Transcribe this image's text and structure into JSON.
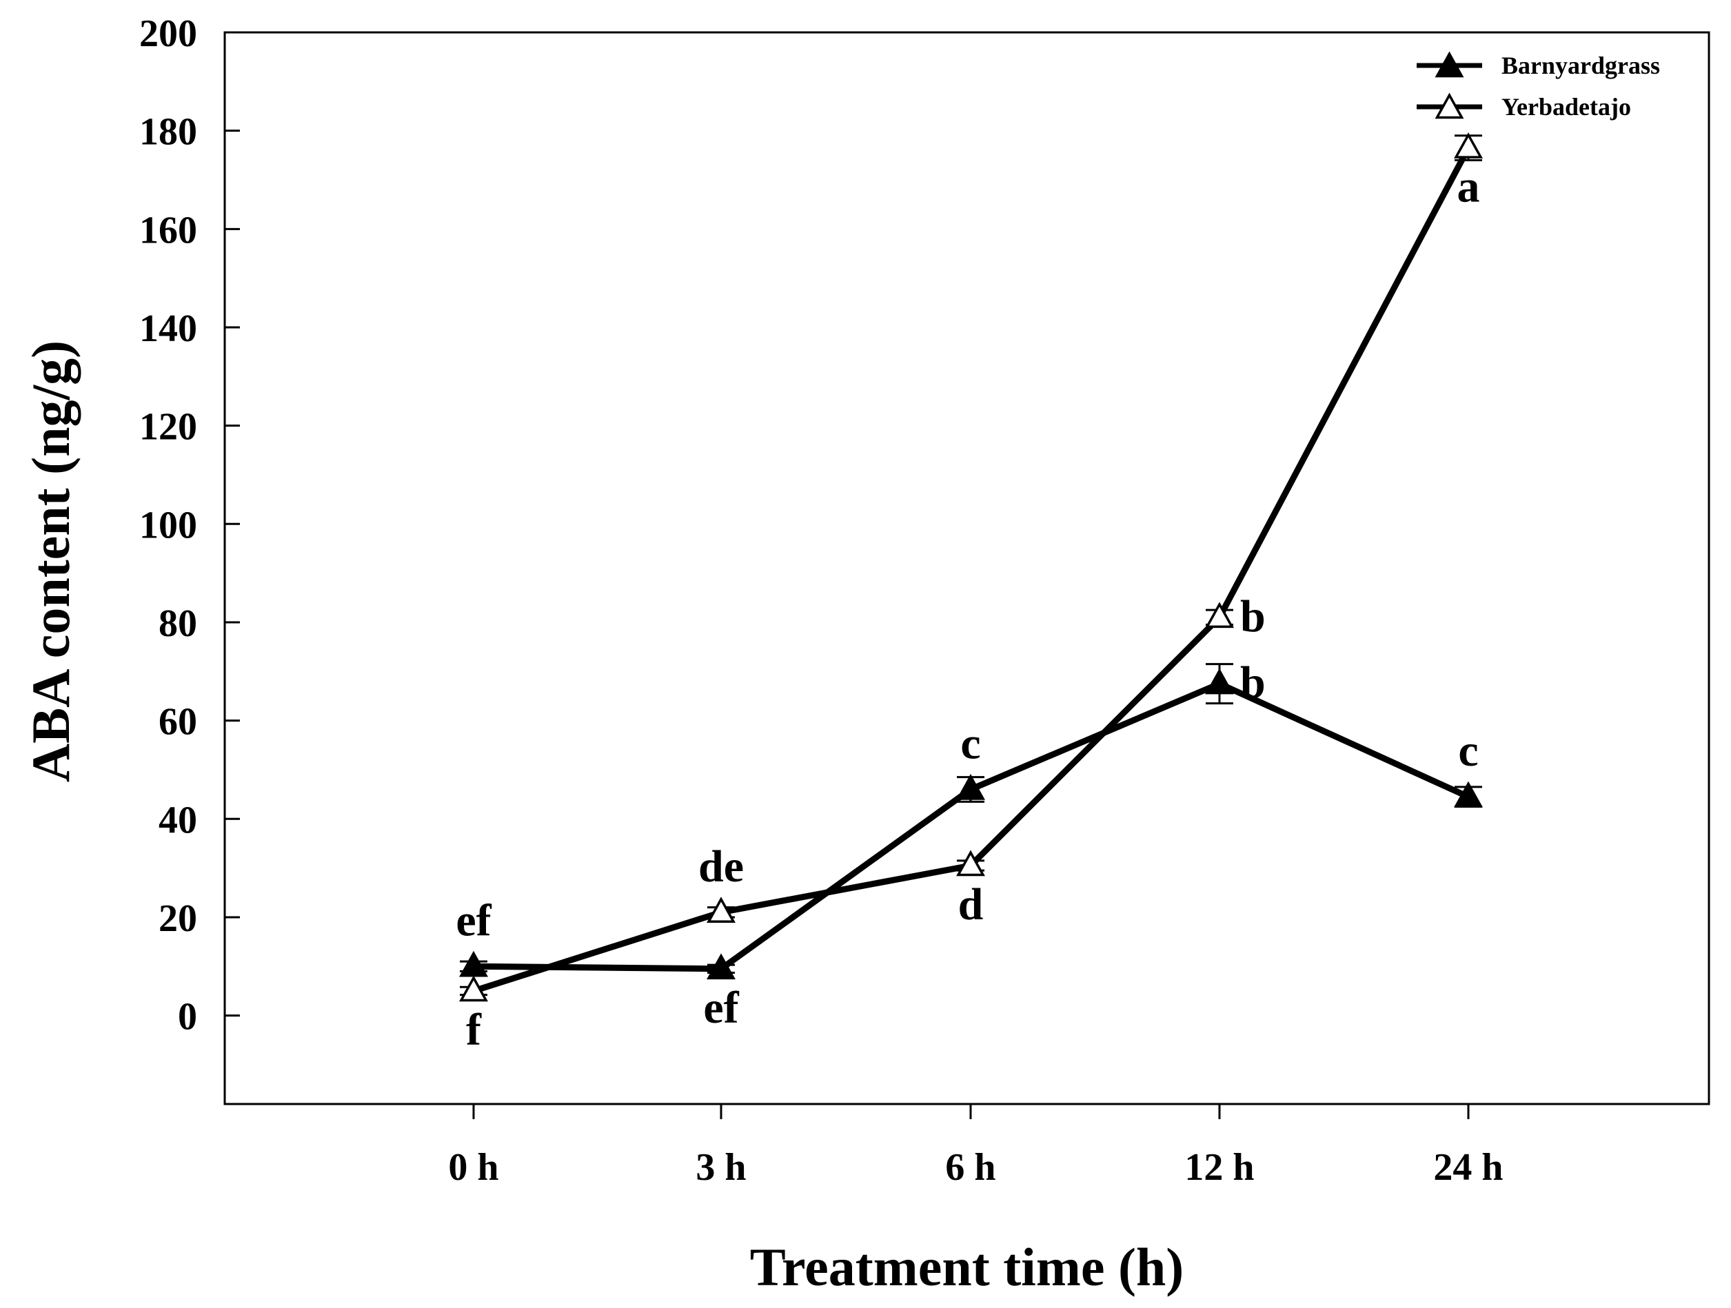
{
  "chart_data": {
    "type": "line",
    "title": "",
    "xlabel": "Treatment time (h)",
    "ylabel": "ABA content (ng/g)",
    "categories": [
      "0 h",
      "3 h",
      "6 h",
      "12 h",
      "24 h"
    ],
    "ylim": [
      -18,
      200
    ],
    "yticks": [
      0,
      20,
      40,
      60,
      80,
      100,
      120,
      140,
      160,
      180,
      200
    ],
    "grid": false,
    "legend_position": "top-right",
    "series": [
      {
        "name": "Barnyardgrass",
        "marker": "filled-triangle",
        "values": [
          10,
          9.5,
          46,
          67.5,
          44.5
        ],
        "errors": [
          1,
          0.8,
          2.5,
          4,
          2
        ],
        "labels": [
          "ef",
          "ef",
          "c",
          "b",
          "c"
        ],
        "label_side": [
          "above",
          "below",
          "above",
          "right",
          "above"
        ]
      },
      {
        "name": "Yerbadetajo",
        "marker": "open-triangle",
        "values": [
          5,
          21,
          30.5,
          81,
          176.5
        ],
        "errors": [
          0.8,
          1,
          1,
          1.5,
          2.5
        ],
        "labels": [
          "f",
          "de",
          "d",
          "b",
          "a"
        ],
        "label_side": [
          "below",
          "above",
          "below",
          "right",
          "below"
        ]
      }
    ]
  }
}
